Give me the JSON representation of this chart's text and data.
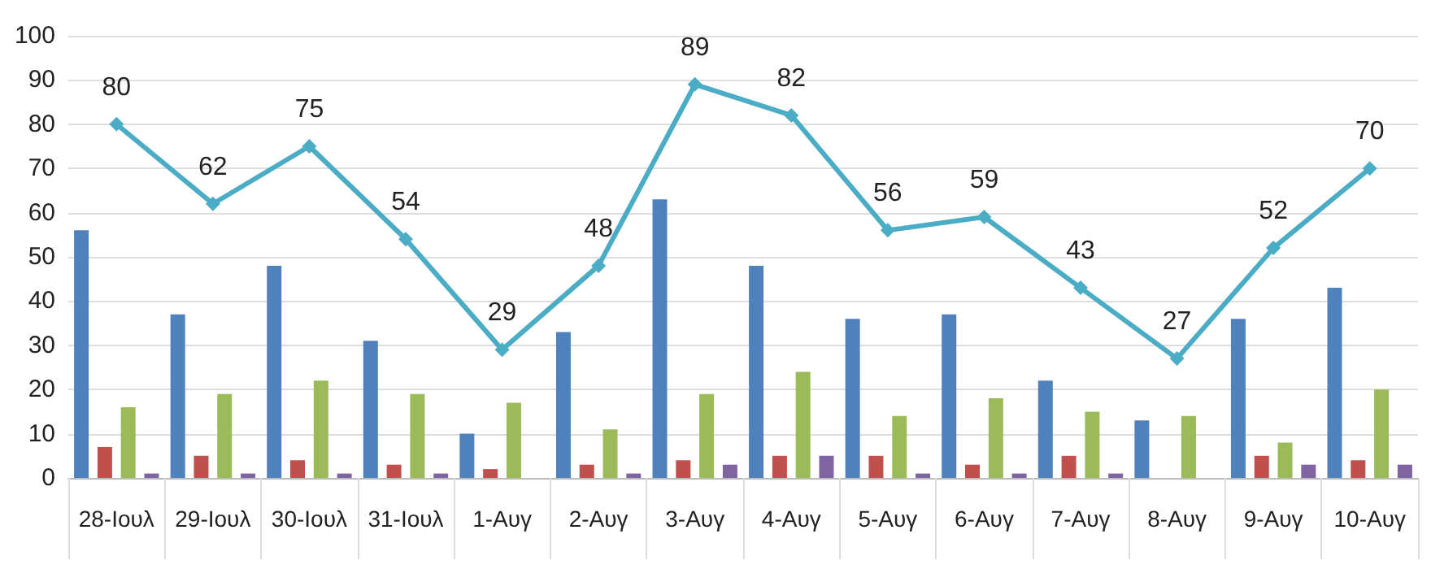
{
  "chart_data": {
    "type": "bar",
    "categories": [
      "28-Ιουλ",
      "29-Ιουλ",
      "30-Ιουλ",
      "31-Ιουλ",
      "1-Αυγ",
      "2-Αυγ",
      "3-Αυγ",
      "4-Αυγ",
      "5-Αυγ",
      "6-Αυγ",
      "7-Αυγ",
      "8-Αυγ",
      "9-Αυγ",
      "10-Αυγ"
    ],
    "series": [
      {
        "color": "#4f81bd",
        "values": [
          56,
          37,
          48,
          31,
          10,
          33,
          63,
          48,
          36,
          37,
          22,
          13,
          36,
          43
        ]
      },
      {
        "color": "#c0504d",
        "values": [
          7,
          5,
          4,
          3,
          2,
          3,
          4,
          5,
          5,
          3,
          5,
          0,
          5,
          4
        ]
      },
      {
        "color": "#9bbb59",
        "values": [
          16,
          19,
          22,
          19,
          17,
          11,
          19,
          24,
          14,
          18,
          15,
          14,
          8,
          20
        ]
      },
      {
        "color": "#8064a2",
        "values": [
          1,
          1,
          1,
          1,
          0,
          1,
          3,
          5,
          1,
          1,
          1,
          0,
          3,
          3
        ]
      },
      {
        "type": "line",
        "color": "#4bacc6",
        "marker": "diamond",
        "values": [
          80,
          62,
          75,
          54,
          29,
          48,
          89,
          82,
          56,
          59,
          43,
          27,
          52,
          70
        ],
        "value_labels": [
          "80",
          "62",
          "75",
          "54",
          "29",
          "48",
          "89",
          "82",
          "56",
          "59",
          "43",
          "27",
          "52",
          "70"
        ]
      }
    ],
    "ylim": [
      0,
      100
    ],
    "yticks": [
      0,
      10,
      20,
      30,
      40,
      50,
      60,
      70,
      80,
      90,
      100
    ],
    "grid": "y"
  }
}
